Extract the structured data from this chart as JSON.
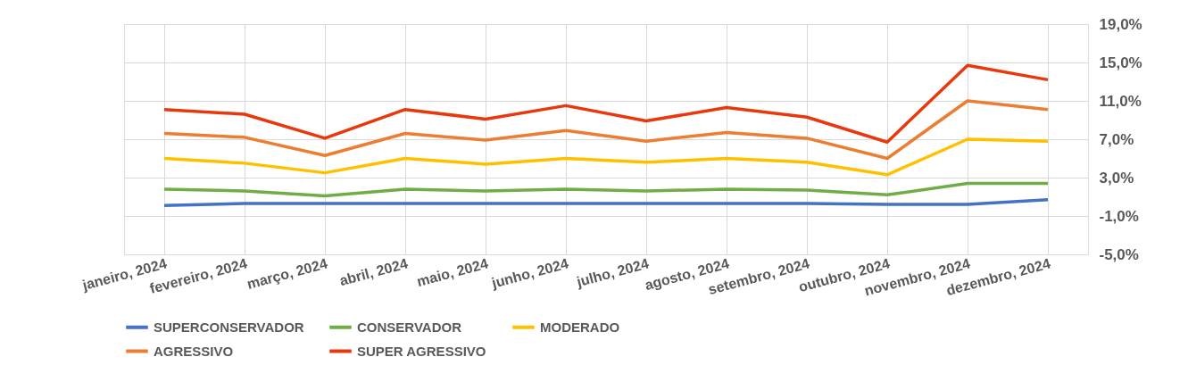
{
  "chart_data": {
    "type": "line",
    "categories": [
      "janeiro, 2024",
      "fevereiro, 2024",
      "março, 2024",
      "abril, 2024",
      "maio, 2024",
      "junho, 2024",
      "julho, 2024",
      "agosto, 2024",
      "setembro, 2024",
      "outubro, 2024",
      "novembro, 2024",
      "dezembro, 2024"
    ],
    "series": [
      {
        "name": "SUPERCONSERVADOR",
        "color": "#4472c4",
        "values": [
          0.1,
          0.3,
          0.3,
          0.3,
          0.3,
          0.3,
          0.3,
          0.3,
          0.3,
          0.2,
          0.2,
          0.7
        ]
      },
      {
        "name": "CONSERVADOR",
        "color": "#70ad47",
        "values": [
          1.8,
          1.6,
          1.1,
          1.8,
          1.6,
          1.8,
          1.6,
          1.8,
          1.7,
          1.2,
          2.4,
          2.4
        ]
      },
      {
        "name": "MODERADO",
        "color": "#ffc000",
        "values": [
          5.0,
          4.5,
          3.5,
          5.0,
          4.4,
          5.0,
          4.6,
          5.0,
          4.6,
          3.3,
          7.0,
          6.8
        ]
      },
      {
        "name": "AGRESSIVO",
        "color": "#ed7d31",
        "values": [
          7.6,
          7.2,
          5.3,
          7.6,
          6.9,
          7.9,
          6.8,
          7.7,
          7.1,
          5.0,
          11.0,
          10.1
        ]
      },
      {
        "name": "SUPER AGRESSIVO",
        "color": "#e8380d",
        "values": [
          10.1,
          9.6,
          7.1,
          10.1,
          9.1,
          10.5,
          8.9,
          10.3,
          9.3,
          6.7,
          14.7,
          13.2
        ]
      }
    ],
    "ylim": [
      -5,
      19
    ],
    "yticks": [
      {
        "value": -5,
        "label": "-5,0%"
      },
      {
        "value": -1,
        "label": "-1,0%"
      },
      {
        "value": 3,
        "label": "3,0%"
      },
      {
        "value": 7,
        "label": "7,0%"
      },
      {
        "value": 11,
        "label": "11,0%"
      },
      {
        "value": 15,
        "label": "15,0%"
      },
      {
        "value": 19,
        "label": "19,0%"
      }
    ],
    "grid": true,
    "legend": "bottom",
    "marker": "none",
    "line_style": "solid"
  }
}
